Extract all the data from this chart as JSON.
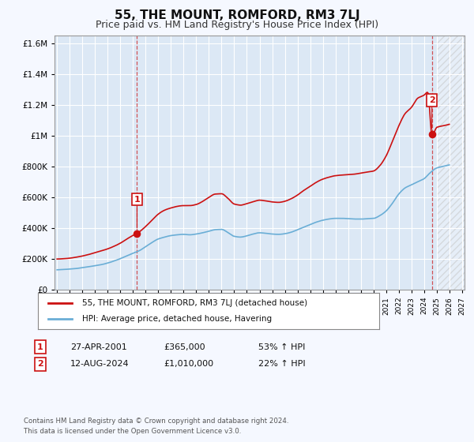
{
  "title": "55, THE MOUNT, ROMFORD, RM3 7LJ",
  "subtitle": "Price paid vs. HM Land Registry's House Price Index (HPI)",
  "title_fontsize": 11,
  "subtitle_fontsize": 9,
  "bg_color": "#f5f8ff",
  "plot_bg_color": "#dce8f5",
  "grid_color": "#ffffff",
  "sale1_date_val": 2001.32,
  "sale1_price": 365000,
  "sale2_date_val": 2024.62,
  "sale2_price": 1010000,
  "hpi_color": "#6aaed6",
  "prop_color": "#cc1111",
  "hpi_label": "HPI: Average price, detached house, Havering",
  "property_label": "55, THE MOUNT, ROMFORD, RM3 7LJ (detached house)",
  "footer": "Contains HM Land Registry data © Crown copyright and database right 2024.\nThis data is licensed under the Open Government Licence v3.0.",
  "ann1_date": "27-APR-2001",
  "ann1_price": "£365,000",
  "ann1_hpi": "53% ↑ HPI",
  "ann2_date": "12-AUG-2024",
  "ann2_price": "£1,010,000",
  "ann2_hpi": "22% ↑ HPI",
  "ylim": [
    0,
    1650000
  ],
  "xlim_start": 1994.8,
  "xlim_end": 2027.2
}
